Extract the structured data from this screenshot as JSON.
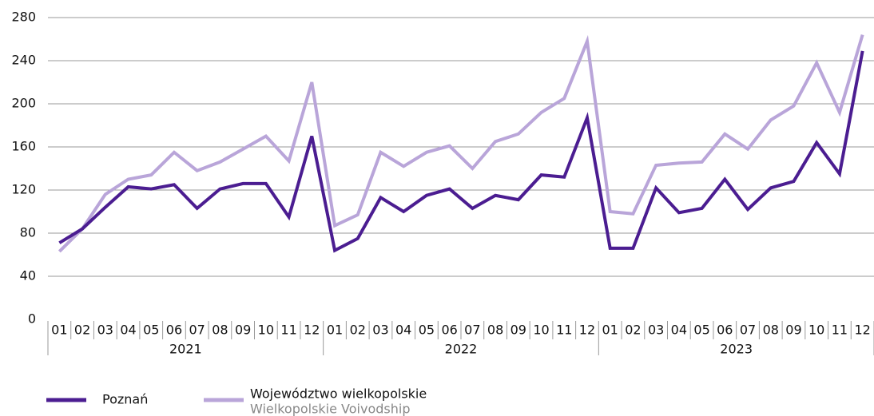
{
  "chart_data": {
    "type": "line",
    "categories": [
      "01",
      "02",
      "03",
      "04",
      "05",
      "06",
      "07",
      "08",
      "09",
      "10",
      "11",
      "12",
      "01",
      "02",
      "03",
      "04",
      "05",
      "06",
      "07",
      "08",
      "09",
      "10",
      "11",
      "12",
      "01",
      "02",
      "03",
      "04",
      "05",
      "06",
      "07",
      "08",
      "09",
      "10",
      "11",
      "12"
    ],
    "year_groups": [
      "2021",
      "2022",
      "2023"
    ],
    "series": [
      {
        "name": "Poznań",
        "color": "#4b1d91",
        "values": [
          71,
          84,
          104,
          123,
          121,
          125,
          103,
          121,
          126,
          126,
          95,
          170,
          64,
          75,
          113,
          100,
          115,
          121,
          103,
          115,
          111,
          134,
          132,
          187,
          66,
          66,
          122,
          99,
          103,
          130,
          102,
          122,
          128,
          164,
          135,
          249
        ]
      },
      {
        "name": "Województwo wielkopolskie",
        "name_en": "Wielkopolskie Voivodship",
        "color": "#b9a5d9",
        "values": [
          63,
          84,
          116,
          130,
          134,
          155,
          138,
          146,
          158,
          170,
          147,
          220,
          87,
          97,
          155,
          142,
          155,
          161,
          140,
          165,
          172,
          192,
          205,
          258,
          100,
          98,
          143,
          145,
          146,
          172,
          158,
          185,
          198,
          238,
          192,
          264
        ]
      }
    ],
    "ylim": [
      0,
      280
    ],
    "yticks": [
      0,
      40,
      80,
      120,
      160,
      200,
      240,
      280
    ],
    "grid": true
  }
}
